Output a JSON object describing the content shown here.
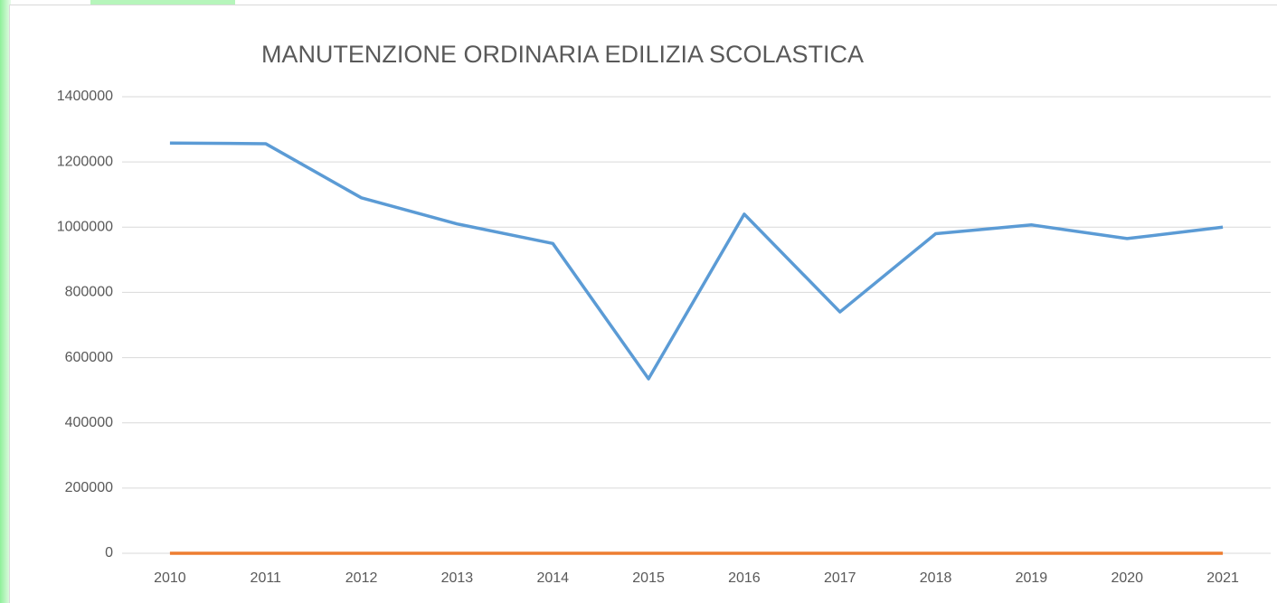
{
  "chart_data": {
    "type": "line",
    "title": "MANUTENZIONE ORDINARIA EDILIZIA SCOLASTICA",
    "categories": [
      "2010",
      "2011",
      "2012",
      "2013",
      "2014",
      "2015",
      "2016",
      "2017",
      "2018",
      "2019",
      "2020",
      "2021"
    ],
    "series": [
      {
        "color": "#5b9bd5",
        "values": [
          1258000,
          1256000,
          1090000,
          1010000,
          950000,
          535000,
          1040000,
          740000,
          980000,
          1007000,
          965000,
          1000000
        ]
      },
      {
        "color": "#ed7d31",
        "values": [
          0,
          0,
          0,
          0,
          0,
          0,
          0,
          0,
          0,
          0,
          0,
          0
        ]
      }
    ],
    "ylim": [
      0,
      1400000
    ],
    "yticks": [
      0,
      200000,
      400000,
      600000,
      800000,
      1000000,
      1200000,
      1400000
    ],
    "grid": true
  }
}
